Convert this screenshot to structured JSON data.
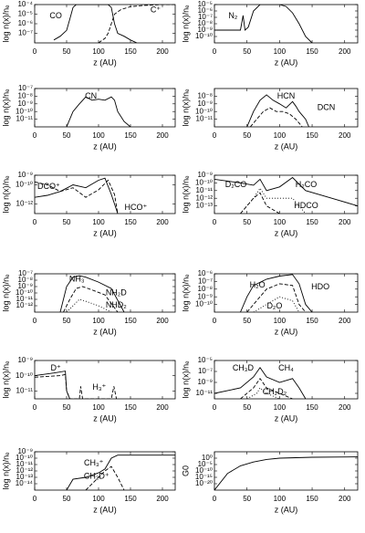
{
  "chart_data": [
    {
      "type": "line",
      "log": true,
      "ylabel": "log n(x)/nₑ",
      "xlabel": "z (AU)",
      "xlim": [
        0,
        220
      ],
      "xticks": [
        0,
        50,
        100,
        150,
        200
      ],
      "ylim": [
        1e-08,
        0.0001
      ],
      "yticks": [
        {
          "value": 1e-07,
          "label": "10⁻⁷"
        },
        {
          "value": 1e-06,
          "label": "10⁻⁶"
        },
        {
          "value": 1e-05,
          "label": "10⁻⁵"
        },
        {
          "value": 0.0001,
          "label": "10⁻⁴"
        }
      ],
      "series": [
        {
          "name": "CO",
          "color": "#000000",
          "dash": "solid",
          "x": [
            30,
            40,
            50,
            55,
            60,
            65,
            115,
            120,
            125,
            130,
            140,
            150,
            160
          ],
          "values": [
            2e-08,
            5e-08,
            2e-07,
            3e-06,
            5e-05,
            0.0001,
            0.0001,
            5e-05,
            1e-06,
            1e-07,
            5e-08,
            2e-08,
            1e-08
          ]
        },
        {
          "name": "C⁺",
          "color": "#000000",
          "dash": "dashed",
          "x": [
            100,
            110,
            115,
            120,
            125,
            135,
            150,
            170,
            200,
            220
          ],
          "values": [
            1e-08,
            3e-08,
            1e-07,
            1e-06,
            1e-05,
            3e-05,
            6e-05,
            8e-05,
            0.0001,
            0.0001
          ]
        }
      ]
    },
    {
      "type": "line",
      "log": true,
      "ylabel": "log n(x)/nₑ",
      "xlabel": "z (AU)",
      "xlim": [
        0,
        220
      ],
      "xticks": [
        0,
        50,
        100,
        150,
        200
      ],
      "ylim": [
        1e-11,
        1e-05
      ],
      "yticks": [
        {
          "value": 1e-10,
          "label": "10⁻¹⁰"
        },
        {
          "value": 1e-09,
          "label": "10⁻⁹"
        },
        {
          "value": 1e-08,
          "label": "10⁻⁸"
        },
        {
          "value": 1e-07,
          "label": "10⁻⁷"
        },
        {
          "value": 1e-06,
          "label": "10⁻⁶"
        },
        {
          "value": 1e-05,
          "label": "10⁻⁵"
        }
      ],
      "series": [
        {
          "name": "N₂",
          "color": "#000000",
          "dash": "solid",
          "x": [
            0,
            40,
            44,
            47,
            52,
            60,
            70,
            100,
            110,
            120,
            130,
            140,
            150
          ],
          "values": [
            1e-09,
            1e-09,
            2e-07,
            1e-09,
            3e-09,
            1e-06,
            1e-05,
            1e-05,
            5e-06,
            5e-07,
            1e-08,
            1e-10,
            1e-11
          ]
        }
      ]
    },
    {
      "type": "line",
      "log": true,
      "ylabel": "log n(x)/nₑ",
      "xlabel": "z (AU)",
      "xlim": [
        0,
        220
      ],
      "xticks": [
        0,
        50,
        100,
        150,
        200
      ],
      "ylim": [
        1e-12,
        1e-07
      ],
      "yticks": [
        {
          "value": 1e-11,
          "label": "10⁻¹¹"
        },
        {
          "value": 1e-10,
          "label": "10⁻¹⁰"
        },
        {
          "value": 1e-09,
          "label": "10⁻⁹"
        },
        {
          "value": 1e-08,
          "label": "10⁻⁸"
        },
        {
          "value": 1e-07,
          "label": "10⁻⁷"
        }
      ],
      "series": [
        {
          "name": "CN",
          "color": "#000000",
          "dash": "solid",
          "x": [
            50,
            60,
            70,
            80,
            90,
            100,
            110,
            120,
            125,
            130,
            140,
            150
          ],
          "values": [
            1e-12,
            1e-10,
            1e-09,
            8e-09,
            3e-09,
            4e-09,
            3e-09,
            8e-09,
            3e-09,
            1e-10,
            5e-12,
            1e-12
          ]
        }
      ]
    },
    {
      "type": "line",
      "log": true,
      "ylabel": "log n(x)/nₑ",
      "xlabel": "z (AU)",
      "xlim": [
        0,
        220
      ],
      "xticks": [
        0,
        50,
        100,
        150,
        200
      ],
      "ylim": [
        1e-12,
        1e-07
      ],
      "yticks": [
        {
          "value": 1e-11,
          "label": "10⁻¹¹"
        },
        {
          "value": 1e-10,
          "label": "10⁻¹⁰"
        },
        {
          "value": 1e-09,
          "label": "10⁻⁹"
        },
        {
          "value": 1e-08,
          "label": "10⁻⁸"
        }
      ],
      "series": [
        {
          "name": "HCN",
          "color": "#000000",
          "dash": "solid",
          "x": [
            50,
            60,
            70,
            80,
            90,
            100,
            110,
            120,
            125,
            130,
            140,
            145
          ],
          "values": [
            1e-12,
            1e-10,
            3e-09,
            1.5e-08,
            3e-09,
            1e-09,
            3e-10,
            2e-09,
            5e-10,
            1e-10,
            1e-11,
            1e-12
          ]
        },
        {
          "name": "DCN",
          "color": "#000000",
          "dash": "dashed",
          "x": [
            55,
            65,
            75,
            85,
            95,
            105,
            115,
            125,
            135
          ],
          "values": [
            1e-12,
            1e-11,
            1e-10,
            3e-10,
            1e-10,
            1e-10,
            5e-11,
            1e-11,
            1e-12
          ]
        }
      ]
    },
    {
      "type": "line",
      "log": true,
      "ylabel": "log n(x)/nₑ",
      "xlabel": "z (AU)",
      "xlim": [
        0,
        220
      ],
      "xticks": [
        0,
        50,
        100,
        150,
        200
      ],
      "ylim": [
        1e-13,
        1e-09
      ],
      "yticks": [
        {
          "value": 1e-12,
          "label": "10⁻¹²"
        },
        {
          "value": 1e-10,
          "label": "10⁻¹⁰"
        },
        {
          "value": 1e-09,
          "label": "10⁻⁹"
        }
      ],
      "series": [
        {
          "name": "DCO⁺",
          "color": "#000000",
          "dash": "dashed",
          "x": [
            0,
            20,
            40,
            60,
            80,
            100,
            115,
            125,
            130
          ],
          "values": [
            2e-10,
            1e-10,
            2e-11,
            5e-11,
            5e-12,
            3e-11,
            3e-10,
            1e-11,
            1e-13
          ]
        },
        {
          "name": "HCO⁺",
          "color": "#000000",
          "dash": "solid",
          "x": [
            0,
            20,
            40,
            60,
            80,
            100,
            110,
            120,
            130
          ],
          "values": [
            5e-12,
            8e-12,
            2e-11,
            1e-10,
            5e-11,
            3e-10,
            5e-10,
            1e-11,
            1e-13
          ]
        }
      ]
    },
    {
      "type": "line",
      "log": true,
      "ylabel": "log n(x)/nₑ",
      "xlabel": "z (AU)",
      "xlim": [
        0,
        220
      ],
      "xticks": [
        0,
        50,
        100,
        150,
        200
      ],
      "ylim": [
        1e-14,
        1e-09
      ],
      "yticks": [
        {
          "value": 1e-13,
          "label": "10⁻¹³"
        },
        {
          "value": 1e-12,
          "label": "10⁻¹²"
        },
        {
          "value": 1e-11,
          "label": "10⁻¹¹"
        },
        {
          "value": 1e-10,
          "label": "10⁻¹⁰"
        },
        {
          "value": 1e-09,
          "label": "10⁻⁹"
        }
      ],
      "series": [
        {
          "name": "D₂CO",
          "color": "#000000",
          "dash": "dashed",
          "x": [
            40,
            60,
            70,
            80,
            100
          ],
          "values": [
            1e-14,
            1e-12,
            5e-12,
            1e-13,
            1e-14
          ]
        },
        {
          "name": "H₂CO",
          "color": "#000000",
          "dash": "solid",
          "x": [
            0,
            40,
            60,
            70,
            80,
            100,
            120,
            140,
            180,
            220
          ],
          "values": [
            3e-10,
            1e-10,
            5e-11,
            3e-10,
            1e-11,
            3e-11,
            5e-10,
            1e-11,
            1e-12,
            1e-13
          ]
        },
        {
          "name": "HDCO",
          "color": "#000000",
          "dash": "dotted",
          "x": [
            40,
            60,
            70,
            80,
            100,
            120,
            140
          ],
          "values": [
            1e-14,
            1e-12,
            2e-11,
            1e-12,
            1e-12,
            1e-12,
            1e-14
          ]
        }
      ]
    },
    {
      "type": "line",
      "log": true,
      "ylabel": "log n(x)/nₑ",
      "xlabel": "z (AU)",
      "xlim": [
        0,
        220
      ],
      "xticks": [
        0,
        50,
        100,
        150,
        200
      ],
      "ylim": [
        1e-13,
        1e-07
      ],
      "yticks": [
        {
          "value": 1e-12,
          "label": "10⁻¹²"
        },
        {
          "value": 1e-11,
          "label": "10⁻¹¹"
        },
        {
          "value": 1e-10,
          "label": "10⁻¹⁰"
        },
        {
          "value": 1e-09,
          "label": "10⁻⁹"
        },
        {
          "value": 1e-08,
          "label": "10⁻⁸"
        },
        {
          "value": 1e-07,
          "label": "10⁻⁷"
        }
      ],
      "series": [
        {
          "name": "NH₃",
          "color": "#000000",
          "dash": "solid",
          "x": [
            40,
            50,
            60,
            70,
            80,
            100,
            120,
            140
          ],
          "values": [
            1e-13,
            1e-09,
            3e-08,
            5e-08,
            3e-08,
            5e-09,
            5e-10,
            1e-13
          ]
        },
        {
          "name": "NH₂D",
          "color": "#000000",
          "dash": "dashed",
          "x": [
            45,
            55,
            65,
            75,
            90,
            110,
            130
          ],
          "values": [
            1e-13,
            1e-11,
            5e-10,
            1e-09,
            3e-10,
            5e-11,
            1e-13
          ]
        },
        {
          "name": "NHD₂",
          "color": "#000000",
          "dash": "dotted",
          "x": [
            50,
            60,
            70,
            80,
            100,
            120
          ],
          "values": [
            1e-13,
            1e-12,
            1e-11,
            5e-12,
            1e-12,
            1e-13
          ]
        }
      ]
    },
    {
      "type": "line",
      "log": true,
      "ylabel": "log n(x)/nₑ",
      "xlabel": "z (AU)",
      "xlim": [
        0,
        220
      ],
      "xticks": [
        0,
        50,
        100,
        150,
        200
      ],
      "ylim": [
        1e-11,
        1e-06
      ],
      "yticks": [
        {
          "value": 1e-10,
          "label": "10⁻¹⁰"
        },
        {
          "value": 1e-09,
          "label": "10⁻⁹"
        },
        {
          "value": 1e-08,
          "label": "10⁻⁸"
        },
        {
          "value": 1e-07,
          "label": "10⁻⁷"
        },
        {
          "value": 1e-06,
          "label": "10⁻⁶"
        }
      ],
      "series": [
        {
          "name": "H₂O",
          "color": "#000000",
          "dash": "solid",
          "x": [
            40,
            50,
            60,
            80,
            100,
            120,
            130,
            140,
            150
          ],
          "values": [
            1e-11,
            1e-09,
            3e-08,
            2e-07,
            5e-07,
            8e-07,
            5e-08,
            1e-10,
            1e-11
          ]
        },
        {
          "name": "HDO",
          "color": "#000000",
          "dash": "dashed",
          "x": [
            50,
            60,
            80,
            100,
            120,
            130,
            140
          ],
          "values": [
            1e-11,
            1e-10,
            1e-08,
            5e-08,
            3e-08,
            1e-10,
            1e-11
          ]
        },
        {
          "name": "D₂O",
          "color": "#000000",
          "dash": "dotted",
          "x": [
            60,
            80,
            100,
            120,
            130
          ],
          "values": [
            1e-11,
            1e-10,
            1e-09,
            3e-10,
            1e-11
          ]
        }
      ]
    },
    {
      "type": "line",
      "log": true,
      "ylabel": "log n(x)/nₑ",
      "xlabel": "z (AU)",
      "xlim": [
        0,
        220
      ],
      "xticks": [
        0,
        50,
        100,
        150,
        200
      ],
      "ylim": [
        3e-12,
        1e-09
      ],
      "yticks": [
        {
          "value": 1e-11,
          "label": "10⁻¹¹"
        },
        {
          "value": 1e-10,
          "label": "10⁻¹⁰"
        },
        {
          "value": 1e-09,
          "label": "10⁻⁹"
        }
      ],
      "series": [
        {
          "name": "D⁺",
          "color": "#000000",
          "dash": "solid",
          "x": [
            0,
            30,
            48,
            50,
            55
          ],
          "values": [
            1e-10,
            1.5e-10,
            2e-10,
            1e-11,
            3e-12
          ]
        },
        {
          "name": "H₃⁺",
          "color": "#000000",
          "dash": "dashed",
          "x": [
            0,
            40,
            48,
            50,
            55,
            70,
            72,
            75,
            120,
            124,
            128
          ],
          "values": [
            8e-11,
            1e-10,
            1.2e-10,
            1e-11,
            3e-12,
            3e-12,
            2e-11,
            3e-12,
            3e-12,
            2e-11,
            3e-12
          ]
        }
      ]
    },
    {
      "type": "line",
      "log": true,
      "ylabel": "log n(x)/nₑ",
      "xlabel": "z (AU)",
      "xlim": [
        0,
        220
      ],
      "xticks": [
        0,
        50,
        100,
        150,
        200
      ],
      "ylim": [
        1e-12,
        1e-05
      ],
      "yticks": [
        {
          "value": 1e-11,
          "label": "10⁻¹¹"
        },
        {
          "value": 1e-09,
          "label": "10⁻⁹"
        },
        {
          "value": 1e-07,
          "label": "10⁻⁷"
        },
        {
          "value": 1e-05,
          "label": "10⁻⁵"
        }
      ],
      "series": [
        {
          "name": "CH₃D",
          "color": "#000000",
          "dash": "dashed",
          "x": [
            40,
            60,
            70,
            80,
            100,
            120
          ],
          "values": [
            1e-12,
            1e-10,
            5e-09,
            1e-10,
            1e-11,
            1e-12
          ]
        },
        {
          "name": "CH₄",
          "color": "#000000",
          "dash": "solid",
          "x": [
            0,
            40,
            60,
            70,
            80,
            100,
            120,
            130,
            140
          ],
          "values": [
            1e-11,
            1e-10,
            1e-08,
            5e-07,
            1e-08,
            1e-09,
            5e-09,
            1e-10,
            1e-12
          ]
        },
        {
          "name": "CH₂D₂",
          "color": "#000000",
          "dash": "dotted",
          "x": [
            50,
            65,
            70,
            80,
            100
          ],
          "values": [
            1e-12,
            1e-11,
            1e-10,
            1e-11,
            1e-12
          ]
        }
      ]
    },
    {
      "type": "line",
      "log": true,
      "ylabel": "log n(x)/nₑ",
      "xlabel": "z (AU)",
      "xlim": [
        0,
        220
      ],
      "xticks": [
        0,
        50,
        100,
        150,
        200
      ],
      "ylim": [
        1e-15,
        1e-09
      ],
      "yticks": [
        {
          "value": 1e-14,
          "label": "10⁻¹⁴"
        },
        {
          "value": 1e-13,
          "label": "10⁻¹³"
        },
        {
          "value": 1e-12,
          "label": "10⁻¹²"
        },
        {
          "value": 1e-11,
          "label": "10⁻¹¹"
        },
        {
          "value": 1e-10,
          "label": "10⁻¹⁰"
        },
        {
          "value": 1e-09,
          "label": "10⁻⁹"
        }
      ],
      "series": [
        {
          "name": "CH₃⁺",
          "color": "#000000",
          "dash": "solid",
          "x": [
            50,
            60,
            80,
            100,
            110,
            120,
            130,
            220
          ],
          "values": [
            1e-15,
            5e-14,
            1e-13,
            5e-13,
            2e-12,
            1e-10,
            3e-10,
            3e-10
          ]
        },
        {
          "name": "CH₂D⁺",
          "color": "#000000",
          "dash": "dashed",
          "x": [
            80,
            100,
            110,
            120,
            130,
            140
          ],
          "values": [
            1e-15,
            1e-13,
            1e-12,
            5e-12,
            1e-13,
            1e-15
          ]
        }
      ]
    },
    {
      "type": "line",
      "log": true,
      "ylabel": "G0",
      "xlabel": "z (AU)",
      "xlim": [
        0,
        220
      ],
      "xticks": [
        0,
        50,
        100,
        150,
        200
      ],
      "ylim": [
        1e-25,
        100000.0
      ],
      "yticks": [
        {
          "value": 1e-20,
          "label": "10⁻²⁰"
        },
        {
          "value": 1e-15,
          "label": "10⁻¹⁵"
        },
        {
          "value": 1e-10,
          "label": "10⁻¹⁰"
        },
        {
          "value": 1e-05,
          "label": "10⁻⁵"
        },
        {
          "value": 1,
          "label": "10⁰"
        }
      ],
      "series": [
        {
          "color": "#000000",
          "dash": "solid",
          "x": [
            0,
            20,
            40,
            60,
            80,
            100,
            150,
            220
          ],
          "values": [
            1e-25,
            1e-12,
            1e-06,
            0.001,
            0.1,
            1,
            5,
            10
          ]
        }
      ]
    }
  ]
}
